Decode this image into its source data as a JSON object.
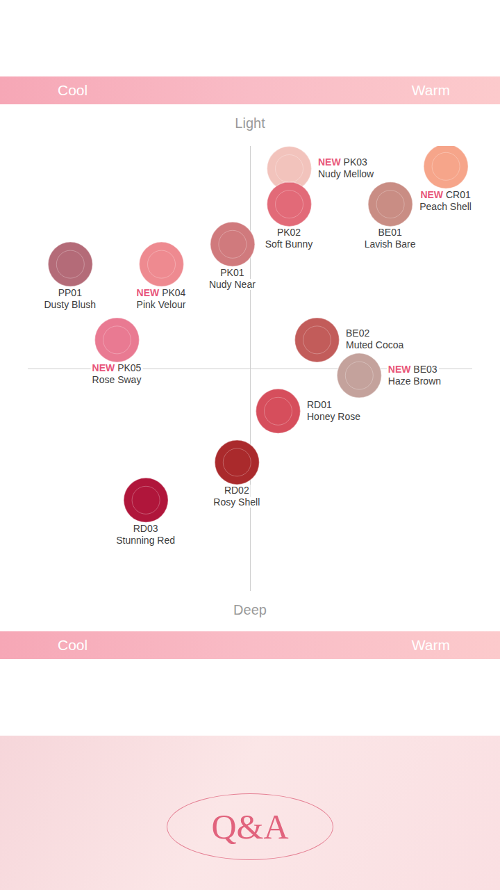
{
  "chart_data": {
    "type": "scatter",
    "x_labels": {
      "left": "Cool",
      "right": "Warm"
    },
    "y_labels": {
      "top": "Light",
      "bottom": "Deep"
    },
    "new_label": "NEW",
    "xlim": [
      -10,
      10
    ],
    "ylim": [
      -10,
      10
    ],
    "tick_labels": false,
    "points": [
      {
        "code": "PK03",
        "name": "Nudy Mellow",
        "new": true,
        "color": "#f2c3bc",
        "x": 1.75,
        "y": 9.0
      },
      {
        "code": "PK02",
        "name": "Soft Bunny",
        "new": false,
        "color": "#e26a78",
        "x": 1.75,
        "y": 7.4
      },
      {
        "code": "CR01",
        "name": "Peach Shell",
        "new": true,
        "color": "#f6a58a",
        "x": 8.8,
        "y": 9.1
      },
      {
        "code": "BE01",
        "name": "Lavish Bare",
        "new": false,
        "color": "#c98d84",
        "x": 6.3,
        "y": 7.4
      },
      {
        "code": "PK01",
        "name": "Nudy Near",
        "new": false,
        "color": "#d07a7d",
        "x": -0.8,
        "y": 5.6
      },
      {
        "code": "PK04",
        "name": "Pink Velour",
        "new": true,
        "color": "#ee8a90",
        "x": -4.0,
        "y": 4.7
      },
      {
        "code": "PP01",
        "name": "Dusty Blush",
        "new": false,
        "color": "#b46b78",
        "x": -8.1,
        "y": 4.7
      },
      {
        "code": "PK05",
        "name": "Rose Sway",
        "new": true,
        "color": "#e97a92",
        "x": -6.0,
        "y": 1.3
      },
      {
        "code": "BE02",
        "name": "Muted Cocoa",
        "new": false,
        "color": "#c25c5a",
        "x": 3.0,
        "y": 1.3
      },
      {
        "code": "BE03",
        "name": "Haze Brown",
        "new": true,
        "color": "#c4a29c",
        "x": 4.9,
        "y": -0.3
      },
      {
        "code": "RD01",
        "name": "Honey Rose",
        "new": false,
        "color": "#d64e5c",
        "x": 1.25,
        "y": -1.9
      },
      {
        "code": "RD02",
        "name": "Rosy Shell",
        "new": false,
        "color": "#aa2a2c",
        "x": -0.6,
        "y": -4.2
      },
      {
        "code": "RD03",
        "name": "Stunning Red",
        "new": false,
        "color": "#b0163b",
        "x": -4.7,
        "y": -5.9
      }
    ]
  },
  "footer": {
    "title": "Q&A"
  }
}
